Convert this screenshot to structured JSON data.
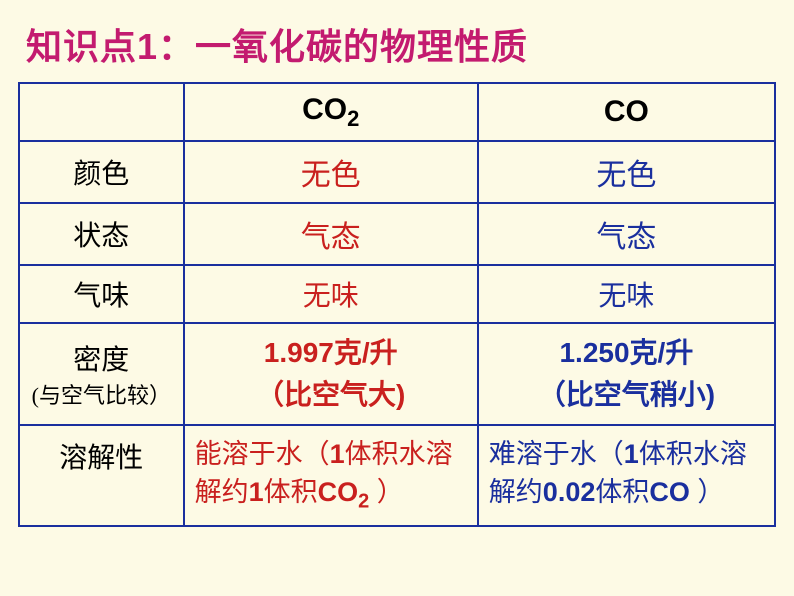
{
  "title": "知识点1：一氧化碳的物理性质",
  "table": {
    "border_color": "#1a2f9e",
    "background_color": "#fdfae5",
    "columns": {
      "label_width": 165,
      "co2_width": 295,
      "co_width": 298
    },
    "header": {
      "blank": "",
      "co2_base": "CO",
      "co2_sub": "2",
      "co": "CO"
    },
    "rows": {
      "color": {
        "label": "颜色",
        "co2": "无色",
        "co": "无色"
      },
      "state": {
        "label": "状态",
        "co2": "气态",
        "co": "气态"
      },
      "smell": {
        "label": "气味",
        "co2": "无味",
        "co": "无味"
      },
      "density": {
        "label_line1": "密度",
        "label_line2": "(与空气比较）",
        "co2_line1": "1.997克/升",
        "co2_line2": "（比空气大)",
        "co_line1": "1.250克/升",
        "co_line2": "（比空气稍小)"
      },
      "solubility": {
        "label": "溶解性",
        "co2_pre": "能溶于水（",
        "co2_b1": "1",
        "co2_mid1": "体积水溶解约",
        "co2_b2": "1",
        "co2_mid2": "体积",
        "co2_formula": "CO",
        "co2_sub": "2",
        "co2_end": " ）",
        "co_pre": "难溶于水（",
        "co_b1": "1",
        "co_mid1": "体积水溶解约",
        "co_b2": "0.02",
        "co_mid2": "体积",
        "co_formula": "CO",
        "co_end": " ）"
      }
    }
  },
  "colors": {
    "title": "#c31b6f",
    "co2_text": "#c9201e",
    "co_text": "#1a2f9e",
    "label_text": "#000000"
  },
  "typography": {
    "title_fontsize": 36,
    "cell_fontsize": 28,
    "header_fontsize": 30,
    "solubility_fontsize": 27
  }
}
